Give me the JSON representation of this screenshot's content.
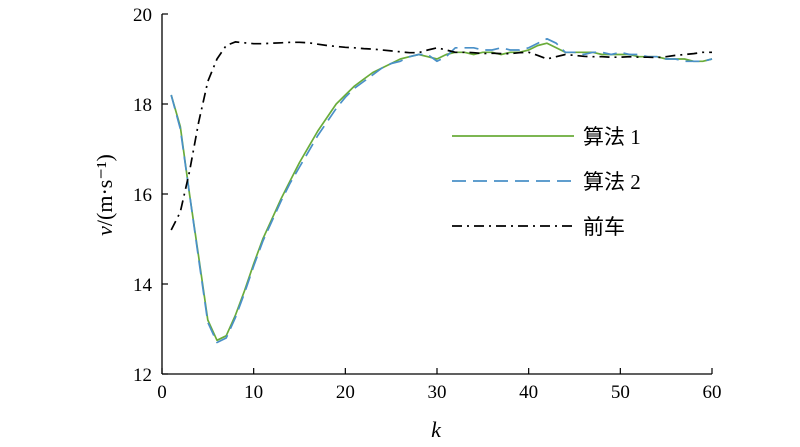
{
  "chart_data": {
    "type": "line",
    "xlabel": "k",
    "ylabel": "v/(m·s⁻¹)",
    "xlim": [
      0,
      60
    ],
    "ylim": [
      12,
      20
    ],
    "xticks": [
      0,
      10,
      20,
      30,
      40,
      50,
      60
    ],
    "yticks": [
      12,
      14,
      16,
      18,
      20
    ],
    "grid": false,
    "legend_position": "right",
    "series": [
      {
        "name": "算法 1",
        "color": "#6aac3a",
        "dash": "solid",
        "x": [
          1,
          2,
          3,
          4,
          5,
          6,
          7,
          8,
          9,
          10,
          11,
          12,
          13,
          14,
          15,
          16,
          17,
          18,
          19,
          20,
          21,
          22,
          23,
          24,
          25,
          26,
          27,
          28,
          29,
          30,
          31,
          32,
          33,
          34,
          35,
          36,
          37,
          38,
          39,
          40,
          41,
          42,
          43,
          44,
          45,
          46,
          47,
          48,
          49,
          50,
          51,
          52,
          53,
          54,
          55,
          56,
          57,
          58,
          59,
          60
        ],
        "values": [
          18.2,
          17.5,
          16.0,
          14.6,
          13.2,
          12.75,
          12.85,
          13.3,
          13.85,
          14.45,
          15.0,
          15.45,
          15.9,
          16.3,
          16.7,
          17.05,
          17.4,
          17.7,
          18.0,
          18.2,
          18.4,
          18.55,
          18.7,
          18.8,
          18.9,
          19.0,
          19.05,
          19.1,
          19.05,
          19.0,
          19.1,
          19.15,
          19.15,
          19.1,
          19.15,
          19.15,
          19.1,
          19.15,
          19.15,
          19.2,
          19.3,
          19.35,
          19.25,
          19.15,
          19.15,
          19.15,
          19.15,
          19.1,
          19.1,
          19.1,
          19.1,
          19.05,
          19.05,
          19.05,
          19.0,
          19.0,
          19.0,
          18.95,
          18.95,
          19.0
        ]
      },
      {
        "name": "算法 2",
        "color": "#4a90c8",
        "dash": "dashed",
        "x": [
          1,
          2,
          3,
          4,
          5,
          6,
          7,
          8,
          9,
          10,
          11,
          12,
          13,
          14,
          15,
          16,
          17,
          18,
          19,
          20,
          21,
          22,
          23,
          24,
          25,
          26,
          27,
          28,
          29,
          30,
          31,
          32,
          33,
          34,
          35,
          36,
          37,
          38,
          39,
          40,
          41,
          42,
          43,
          44,
          45,
          46,
          47,
          48,
          49,
          50,
          51,
          52,
          53,
          54,
          55,
          56,
          57,
          58,
          59,
          60
        ],
        "values": [
          18.2,
          17.45,
          16.0,
          14.55,
          13.15,
          12.7,
          12.8,
          13.25,
          13.8,
          14.4,
          14.95,
          15.4,
          15.85,
          16.25,
          16.6,
          16.95,
          17.3,
          17.6,
          17.9,
          18.15,
          18.35,
          18.5,
          18.65,
          18.8,
          18.9,
          18.95,
          19.05,
          19.1,
          19.1,
          18.95,
          19.05,
          19.25,
          19.25,
          19.25,
          19.2,
          19.2,
          19.25,
          19.2,
          19.2,
          19.25,
          19.35,
          19.45,
          19.35,
          19.15,
          19.15,
          19.1,
          19.15,
          19.15,
          19.1,
          19.15,
          19.1,
          19.1,
          19.05,
          19.05,
          19.0,
          19.0,
          18.95,
          18.95,
          18.95,
          19.0
        ]
      },
      {
        "name": "前车",
        "color": "#000000",
        "dash": "dashdot",
        "x": [
          1,
          2,
          3,
          4,
          5,
          6,
          7,
          8,
          9,
          10,
          11,
          12,
          13,
          14,
          15,
          16,
          17,
          18,
          19,
          20,
          21,
          22,
          23,
          24,
          25,
          26,
          27,
          28,
          29,
          30,
          31,
          32,
          33,
          34,
          35,
          36,
          37,
          38,
          39,
          40,
          41,
          42,
          43,
          44,
          45,
          46,
          47,
          48,
          49,
          50,
          51,
          52,
          53,
          54,
          55,
          56,
          57,
          58,
          59,
          60
        ],
        "values": [
          15.2,
          15.6,
          16.5,
          17.6,
          18.5,
          19.0,
          19.3,
          19.38,
          19.36,
          19.34,
          19.34,
          19.35,
          19.36,
          19.37,
          19.37,
          19.36,
          19.33,
          19.3,
          19.28,
          19.26,
          19.25,
          19.23,
          19.22,
          19.2,
          19.18,
          19.16,
          19.14,
          19.14,
          19.2,
          19.25,
          19.2,
          19.15,
          19.15,
          19.14,
          19.12,
          19.13,
          19.12,
          19.12,
          19.14,
          19.15,
          19.08,
          19.0,
          19.05,
          19.1,
          19.08,
          19.06,
          19.05,
          19.05,
          19.04,
          19.04,
          19.05,
          19.04,
          19.04,
          19.03,
          19.05,
          19.08,
          19.1,
          19.12,
          19.15,
          19.15
        ]
      }
    ]
  }
}
